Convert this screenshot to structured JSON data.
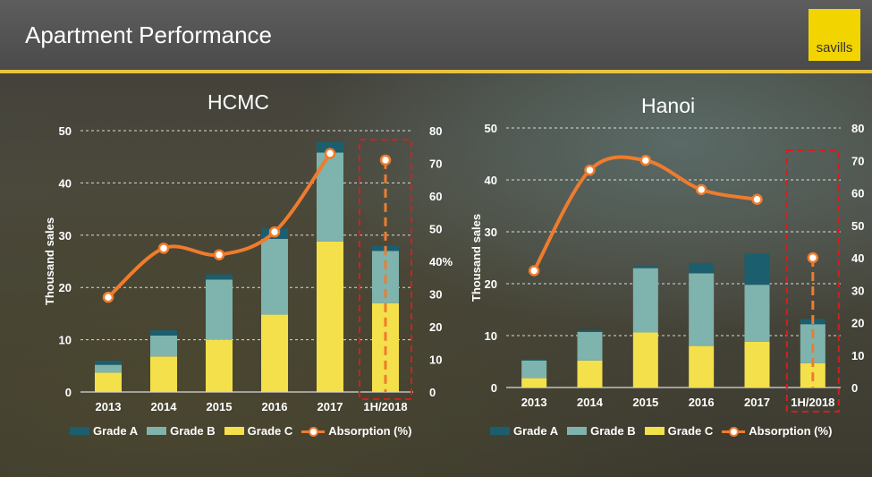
{
  "header": {
    "title": "Apartment Performance",
    "logo_text": "savills"
  },
  "colors": {
    "grade_a": "#1b5e6e",
    "grade_b": "#7fb3ad",
    "grade_c": "#f4e04a",
    "absorption": "#ee7c2e",
    "highlight": "#d21f1f",
    "rule": "#e9c240"
  },
  "chart_data": [
    {
      "type": "bar",
      "title": "HCMC",
      "ylabel": "Thousand sales",
      "y2label": "",
      "categories": [
        "2013",
        "2014",
        "2015",
        "2016",
        "2017",
        "1H/2018"
      ],
      "ylim": [
        0,
        50
      ],
      "y2lim": [
        0,
        80
      ],
      "yticks": [
        "0",
        "10",
        "20",
        "30",
        "40",
        "50"
      ],
      "y2ticks": [
        "0",
        "10",
        "20",
        "30",
        "40%",
        "50",
        "60",
        "70",
        "80"
      ],
      "series": [
        {
          "name": "Grade A",
          "values": [
            0.8,
            1.0,
            1.0,
            2.0,
            2.0,
            1.0
          ]
        },
        {
          "name": "Grade B",
          "values": [
            1.5,
            4.0,
            11.5,
            14.5,
            17.0,
            10.0
          ]
        },
        {
          "name": "Grade C",
          "values": [
            3.7,
            6.8,
            10.0,
            14.8,
            28.8,
            17.0
          ]
        }
      ],
      "line": {
        "name": "Absorption (%)",
        "values": [
          29,
          44,
          42,
          49,
          73,
          71
        ]
      },
      "highlight_category": "1H/2018"
    },
    {
      "type": "bar",
      "title": "Hanoi",
      "ylabel": "Thousand sales",
      "y2label": "%",
      "categories": [
        "2013",
        "2014",
        "2015",
        "2016",
        "2017",
        "1H/2018"
      ],
      "ylim": [
        0,
        50
      ],
      "y2lim": [
        0,
        80
      ],
      "yticks": [
        "0",
        "10",
        "20",
        "30",
        "40",
        "50"
      ],
      "y2ticks": [
        "0",
        "10",
        "20",
        "30",
        "40",
        "50",
        "60",
        "70",
        "80"
      ],
      "series": [
        {
          "name": "Grade A",
          "values": [
            0.2,
            0.3,
            0.4,
            2.0,
            6.0,
            1.0
          ]
        },
        {
          "name": "Grade B",
          "values": [
            3.4,
            5.5,
            12.4,
            14.0,
            11.0,
            7.5
          ]
        },
        {
          "name": "Grade C",
          "values": [
            1.8,
            5.2,
            10.6,
            8.0,
            8.8,
            4.7
          ]
        }
      ],
      "line": {
        "name": "Absorption (%)",
        "values": [
          36,
          67,
          70,
          61,
          58,
          40
        ]
      },
      "highlight_category": "1H/2018"
    }
  ],
  "legends": [
    {
      "grade_a": "Grade A",
      "grade_b": "Grade B",
      "grade_c": "Grade C",
      "absorption": "Absorption (%)"
    },
    {
      "grade_a": "Grade A",
      "grade_b": "Grade B",
      "grade_c": "Grade C",
      "absorption": "Absorption (%)"
    }
  ]
}
